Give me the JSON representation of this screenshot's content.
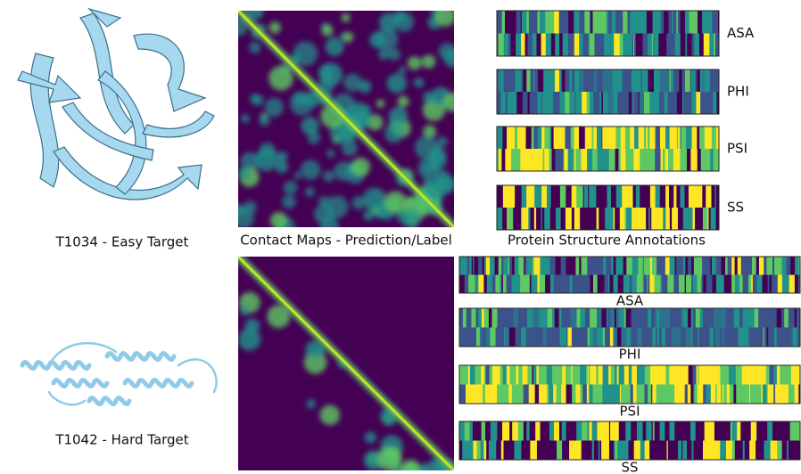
{
  "top": {
    "target_label": "T1034 - Easy Target",
    "contact_map_caption": "Contact Maps - Prediction/Label",
    "annotations_caption": "Protein Structure Annotations",
    "annotation_labels": [
      "ASA",
      "PHI",
      "PSI",
      "SS"
    ]
  },
  "bottom": {
    "target_label": "T1042 - Hard Target",
    "annotation_labels": [
      "ASA",
      "PHI",
      "PSI",
      "SS"
    ]
  }
}
